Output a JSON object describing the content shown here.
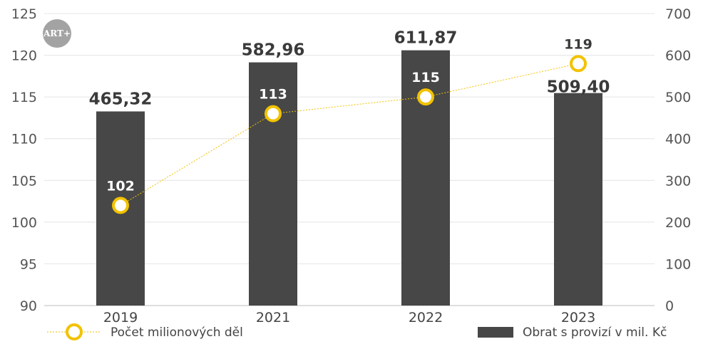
{
  "logo": {
    "text": "ART+"
  },
  "chart_data": {
    "type": "bar",
    "categories": [
      "2019",
      "2021",
      "2022",
      "2023"
    ],
    "series": [
      {
        "name": "Obrat s provizí v mil. Kč",
        "type": "bar",
        "axis": "right",
        "values": [
          465.32,
          582.96,
          611.87,
          509.4
        ],
        "labels": [
          "465,32",
          "582,96",
          "611,87",
          "509,40"
        ],
        "color": "#474747"
      },
      {
        "name": "Počet milionových děl",
        "type": "line",
        "axis": "left",
        "values": [
          102,
          113,
          115,
          119
        ],
        "labels": [
          "102",
          "113",
          "115",
          "119"
        ],
        "color": "#f2c200"
      }
    ],
    "y_left": {
      "min": 90,
      "max": 125,
      "ticks": [
        "90",
        "95",
        "100",
        "105",
        "110",
        "115",
        "120",
        "125"
      ]
    },
    "y_right": {
      "min": 0,
      "max": 700,
      "ticks": [
        "0",
        "100",
        "200",
        "300",
        "400",
        "500",
        "600",
        "700"
      ]
    },
    "grid": true,
    "legend": "bottom"
  }
}
